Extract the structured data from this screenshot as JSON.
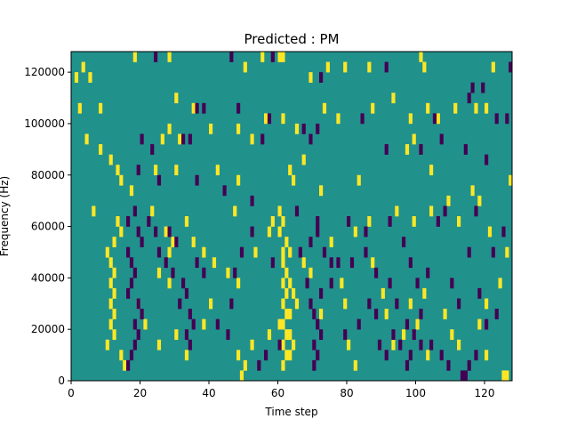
{
  "chart_data": {
    "type": "heatmap",
    "title": "Predicted : PM",
    "xlabel": "Time step",
    "ylabel": "Frequency (Hz)",
    "xlim": [
      0,
      128
    ],
    "ylim": [
      0,
      128000
    ],
    "x_ticks": [
      0,
      20,
      40,
      60,
      80,
      100,
      120
    ],
    "y_ticks": [
      0,
      20000,
      40000,
      60000,
      80000,
      100000,
      120000
    ],
    "x_tick_labels": [
      "0",
      "20",
      "40",
      "60",
      "80",
      "100",
      "120"
    ],
    "y_tick_labels": [
      "0",
      "20000",
      "40000",
      "60000",
      "80000",
      "100000",
      "120000"
    ],
    "grid": false,
    "legend": "none",
    "colors": {
      "background_teal": "#21918c",
      "high_yellow": "#fde725",
      "low_purple": "#440154"
    },
    "cells_high": [
      [
        3,
        120000
      ],
      [
        1,
        116000
      ],
      [
        5,
        116000
      ],
      [
        18,
        124000
      ],
      [
        28,
        124000
      ],
      [
        55,
        124000
      ],
      [
        60,
        124000
      ],
      [
        61,
        124000
      ],
      [
        74,
        120000
      ],
      [
        79,
        120000
      ],
      [
        86,
        120000
      ],
      [
        101,
        124000
      ],
      [
        102,
        120000
      ],
      [
        122,
        120000
      ],
      [
        2,
        104000
      ],
      [
        8,
        104000
      ],
      [
        30,
        108000
      ],
      [
        35,
        104000
      ],
      [
        50,
        120000
      ],
      [
        69,
        116000
      ],
      [
        73,
        104000
      ],
      [
        87,
        104000
      ],
      [
        93,
        108000
      ],
      [
        98,
        100000
      ],
      [
        103,
        104000
      ],
      [
        106,
        100000
      ],
      [
        111,
        104000
      ],
      [
        117,
        104000
      ],
      [
        120,
        104000
      ],
      [
        4,
        92000
      ],
      [
        8,
        88000
      ],
      [
        26,
        92000
      ],
      [
        28,
        96000
      ],
      [
        31,
        92000
      ],
      [
        40,
        96000
      ],
      [
        48,
        96000
      ],
      [
        52,
        92000
      ],
      [
        56,
        100000
      ],
      [
        61,
        100000
      ],
      [
        65,
        96000
      ],
      [
        77,
        100000
      ],
      [
        97,
        88000
      ],
      [
        99,
        92000
      ],
      [
        11,
        84000
      ],
      [
        13,
        80000
      ],
      [
        14,
        76000
      ],
      [
        17,
        72000
      ],
      [
        24,
        80000
      ],
      [
        30,
        80000
      ],
      [
        42,
        80000
      ],
      [
        48,
        76000
      ],
      [
        63,
        80000
      ],
      [
        64,
        76000
      ],
      [
        67,
        84000
      ],
      [
        72,
        72000
      ],
      [
        83,
        76000
      ],
      [
        104,
        80000
      ],
      [
        116,
        72000
      ],
      [
        118,
        68000
      ],
      [
        127,
        76000
      ],
      [
        6,
        64000
      ],
      [
        13,
        60000
      ],
      [
        14,
        56000
      ],
      [
        12,
        52000
      ],
      [
        10,
        48000
      ],
      [
        11,
        44000
      ],
      [
        12,
        40000
      ],
      [
        11,
        36000
      ],
      [
        12,
        32000
      ],
      [
        11,
        28000
      ],
      [
        12,
        24000
      ],
      [
        11,
        20000
      ],
      [
        12,
        16000
      ],
      [
        10,
        12000
      ],
      [
        14,
        8000
      ],
      [
        15,
        4000
      ],
      [
        23,
        64000
      ],
      [
        27,
        56000
      ],
      [
        33,
        60000
      ],
      [
        35,
        52000
      ],
      [
        38,
        48000
      ],
      [
        41,
        44000
      ],
      [
        45,
        40000
      ],
      [
        48,
        36000
      ],
      [
        47,
        64000
      ],
      [
        57,
        56000
      ],
      [
        60,
        64000
      ],
      [
        61,
        60000
      ],
      [
        62,
        52000
      ],
      [
        61,
        48000
      ],
      [
        61,
        44000
      ],
      [
        62,
        40000
      ],
      [
        61,
        36000
      ],
      [
        62,
        32000
      ],
      [
        61,
        28000
      ],
      [
        62,
        24000
      ],
      [
        61,
        20000
      ],
      [
        62,
        16000
      ],
      [
        61,
        12000
      ],
      [
        62,
        8000
      ],
      [
        61,
        4000
      ],
      [
        60,
        56000
      ],
      [
        63,
        48000
      ],
      [
        63,
        36000
      ],
      [
        64,
        32000
      ],
      [
        63,
        24000
      ],
      [
        60,
        20000
      ],
      [
        63,
        16000
      ],
      [
        64,
        12000
      ],
      [
        63,
        8000
      ],
      [
        52,
        12000
      ],
      [
        48,
        8000
      ],
      [
        50,
        4000
      ],
      [
        57,
        16000
      ],
      [
        65,
        28000
      ],
      [
        72,
        24000
      ],
      [
        78,
        36000
      ],
      [
        82,
        56000
      ],
      [
        86,
        60000
      ],
      [
        87,
        44000
      ],
      [
        90,
        32000
      ],
      [
        91,
        24000
      ],
      [
        93,
        12000
      ],
      [
        96,
        16000
      ],
      [
        98,
        28000
      ],
      [
        100,
        20000
      ],
      [
        102,
        32000
      ],
      [
        103,
        8000
      ],
      [
        108,
        24000
      ],
      [
        110,
        16000
      ],
      [
        112,
        12000
      ],
      [
        118,
        20000
      ],
      [
        120,
        8000
      ],
      [
        121,
        56000
      ],
      [
        126,
        48000
      ],
      [
        124,
        36000
      ],
      [
        125,
        0
      ],
      [
        126,
        0
      ],
      [
        120,
        28000
      ],
      [
        99,
        60000
      ],
      [
        94,
        64000
      ],
      [
        104,
        64000
      ],
      [
        109,
        68000
      ],
      [
        112,
        60000
      ],
      [
        21,
        20000
      ],
      [
        19,
        28000
      ],
      [
        25,
        40000
      ],
      [
        28,
        36000
      ],
      [
        28,
        48000
      ],
      [
        30,
        16000
      ],
      [
        38,
        20000
      ],
      [
        40,
        28000
      ],
      [
        67,
        44000
      ],
      [
        69,
        40000
      ],
      [
        75,
        52000
      ],
      [
        79,
        28000
      ],
      [
        80,
        12000
      ],
      [
        82,
        4000
      ],
      [
        58,
        60000
      ],
      [
        49,
        0
      ],
      [
        53,
        48000
      ],
      [
        29,
        52000
      ],
      [
        33,
        8000
      ],
      [
        25,
        12000
      ]
    ],
    "cells_low": [
      [
        24,
        124000
      ],
      [
        46,
        124000
      ],
      [
        58,
        124000
      ],
      [
        72,
        116000
      ],
      [
        91,
        120000
      ],
      [
        115,
        108000
      ],
      [
        116,
        112000
      ],
      [
        119,
        112000
      ],
      [
        36,
        104000
      ],
      [
        38,
        104000
      ],
      [
        48,
        104000
      ],
      [
        57,
        100000
      ],
      [
        67,
        96000
      ],
      [
        71,
        96000
      ],
      [
        84,
        100000
      ],
      [
        105,
        100000
      ],
      [
        123,
        100000
      ],
      [
        126,
        100000
      ],
      [
        127,
        120000
      ],
      [
        20,
        92000
      ],
      [
        23,
        88000
      ],
      [
        32,
        92000
      ],
      [
        34,
        92000
      ],
      [
        55,
        92000
      ],
      [
        69,
        92000
      ],
      [
        91,
        88000
      ],
      [
        101,
        88000
      ],
      [
        107,
        92000
      ],
      [
        114,
        88000
      ],
      [
        120,
        84000
      ],
      [
        19,
        80000
      ],
      [
        25,
        76000
      ],
      [
        36,
        76000
      ],
      [
        44,
        72000
      ],
      [
        52,
        68000
      ],
      [
        65,
        64000
      ],
      [
        71,
        56000
      ],
      [
        73,
        48000
      ],
      [
        75,
        44000
      ],
      [
        81,
        44000
      ],
      [
        85,
        48000
      ],
      [
        88,
        40000
      ],
      [
        92,
        36000
      ],
      [
        94,
        28000
      ],
      [
        97,
        20000
      ],
      [
        99,
        16000
      ],
      [
        101,
        24000
      ],
      [
        104,
        12000
      ],
      [
        107,
        8000
      ],
      [
        109,
        4000
      ],
      [
        113,
        0
      ],
      [
        114,
        0
      ],
      [
        115,
        4000
      ],
      [
        117,
        8000
      ],
      [
        120,
        20000
      ],
      [
        123,
        24000
      ],
      [
        122,
        48000
      ],
      [
        125,
        56000
      ],
      [
        18,
        64000
      ],
      [
        16,
        60000
      ],
      [
        19,
        56000
      ],
      [
        20,
        52000
      ],
      [
        16,
        48000
      ],
      [
        17,
        44000
      ],
      [
        18,
        40000
      ],
      [
        17,
        36000
      ],
      [
        16,
        32000
      ],
      [
        19,
        28000
      ],
      [
        20,
        24000
      ],
      [
        18,
        20000
      ],
      [
        19,
        16000
      ],
      [
        18,
        12000
      ],
      [
        17,
        8000
      ],
      [
        16,
        4000
      ],
      [
        22,
        60000
      ],
      [
        24,
        56000
      ],
      [
        25,
        48000
      ],
      [
        27,
        44000
      ],
      [
        29,
        40000
      ],
      [
        32,
        36000
      ],
      [
        33,
        32000
      ],
      [
        31,
        28000
      ],
      [
        34,
        24000
      ],
      [
        35,
        20000
      ],
      [
        33,
        16000
      ],
      [
        34,
        12000
      ],
      [
        30,
        52000
      ],
      [
        28,
        56000
      ],
      [
        36,
        44000
      ],
      [
        38,
        40000
      ],
      [
        70,
        24000
      ],
      [
        71,
        20000
      ],
      [
        72,
        16000
      ],
      [
        70,
        12000
      ],
      [
        71,
        8000
      ],
      [
        70,
        4000
      ],
      [
        69,
        28000
      ],
      [
        72,
        32000
      ],
      [
        68,
        36000
      ],
      [
        60,
        12000
      ],
      [
        56,
        8000
      ],
      [
        54,
        4000
      ],
      [
        45,
        16000
      ],
      [
        42,
        20000
      ],
      [
        46,
        28000
      ],
      [
        47,
        40000
      ],
      [
        49,
        48000
      ],
      [
        52,
        56000
      ],
      [
        58,
        44000
      ],
      [
        80,
        60000
      ],
      [
        85,
        56000
      ],
      [
        92,
        60000
      ],
      [
        96,
        52000
      ],
      [
        98,
        44000
      ],
      [
        100,
        36000
      ],
      [
        103,
        40000
      ],
      [
        110,
        36000
      ],
      [
        115,
        48000
      ],
      [
        112,
        28000
      ],
      [
        118,
        32000
      ],
      [
        89,
        12000
      ],
      [
        91,
        8000
      ],
      [
        93,
        16000
      ],
      [
        95,
        12000
      ],
      [
        97,
        4000
      ],
      [
        98,
        8000
      ],
      [
        101,
        12000
      ],
      [
        79,
        16000
      ],
      [
        83,
        20000
      ],
      [
        86,
        28000
      ],
      [
        88,
        24000
      ],
      [
        77,
        44000
      ],
      [
        75,
        36000
      ],
      [
        66,
        48000
      ],
      [
        69,
        52000
      ],
      [
        71,
        60000
      ],
      [
        106,
        60000
      ],
      [
        108,
        64000
      ],
      [
        117,
        64000
      ]
    ]
  }
}
